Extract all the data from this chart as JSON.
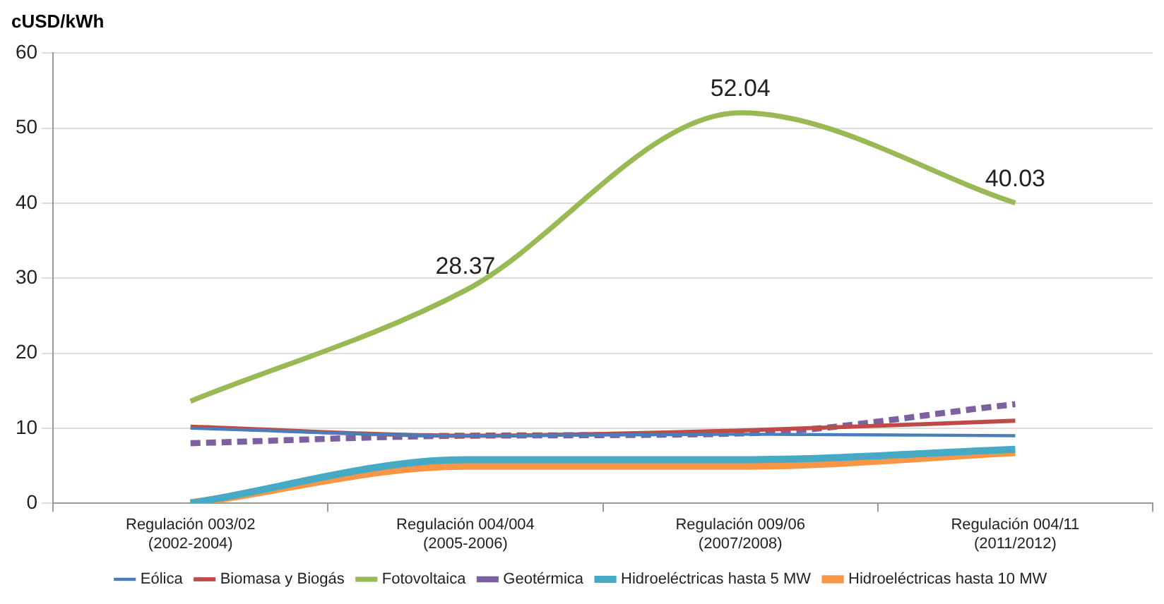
{
  "chart_data": {
    "type": "line",
    "ylabel": "cUSD/kWh",
    "categories": [
      "Regulación 003/02\n(2002-2004)",
      "Regulación 004/004\n(2005-2006)",
      "Regulación 009/06\n(2007/2008)",
      "Regulación 004/11\n(2011/2012)"
    ],
    "series": [
      {
        "name": "Eólica",
        "color": "#4a7ebb",
        "values": [
          10,
          9,
          9.2,
          9
        ]
      },
      {
        "name": "Biomasa y Biogás",
        "color": "#be4b48",
        "values": [
          10.2,
          9,
          9.7,
          11
        ]
      },
      {
        "name": "Fotovoltaica",
        "color": "#98b954",
        "values": [
          13.6,
          28.37,
          52.04,
          40.03
        ],
        "value_labels": [
          null,
          "28.37",
          "52.04",
          "40.03"
        ]
      },
      {
        "name": "Geotérmica",
        "color": "#7d60a0",
        "values": [
          8,
          9,
          9.3,
          13.2
        ],
        "line_style": "dashed"
      },
      {
        "name": "Hidroeléctricas hasta 5 MW",
        "color": "#46aac5",
        "values": [
          0,
          5.8,
          5.8,
          7.2
        ]
      },
      {
        "name": "Hidroeléctricas hasta 10 MW",
        "color": "#f79646",
        "values": [
          0,
          5,
          5,
          6.8
        ]
      }
    ],
    "ylim": [
      0,
      60
    ],
    "yticks": [
      0,
      10,
      20,
      30,
      40,
      50,
      60
    ],
    "grid": "y",
    "legend": "bottom",
    "marker": "none",
    "line_style": "solid"
  }
}
